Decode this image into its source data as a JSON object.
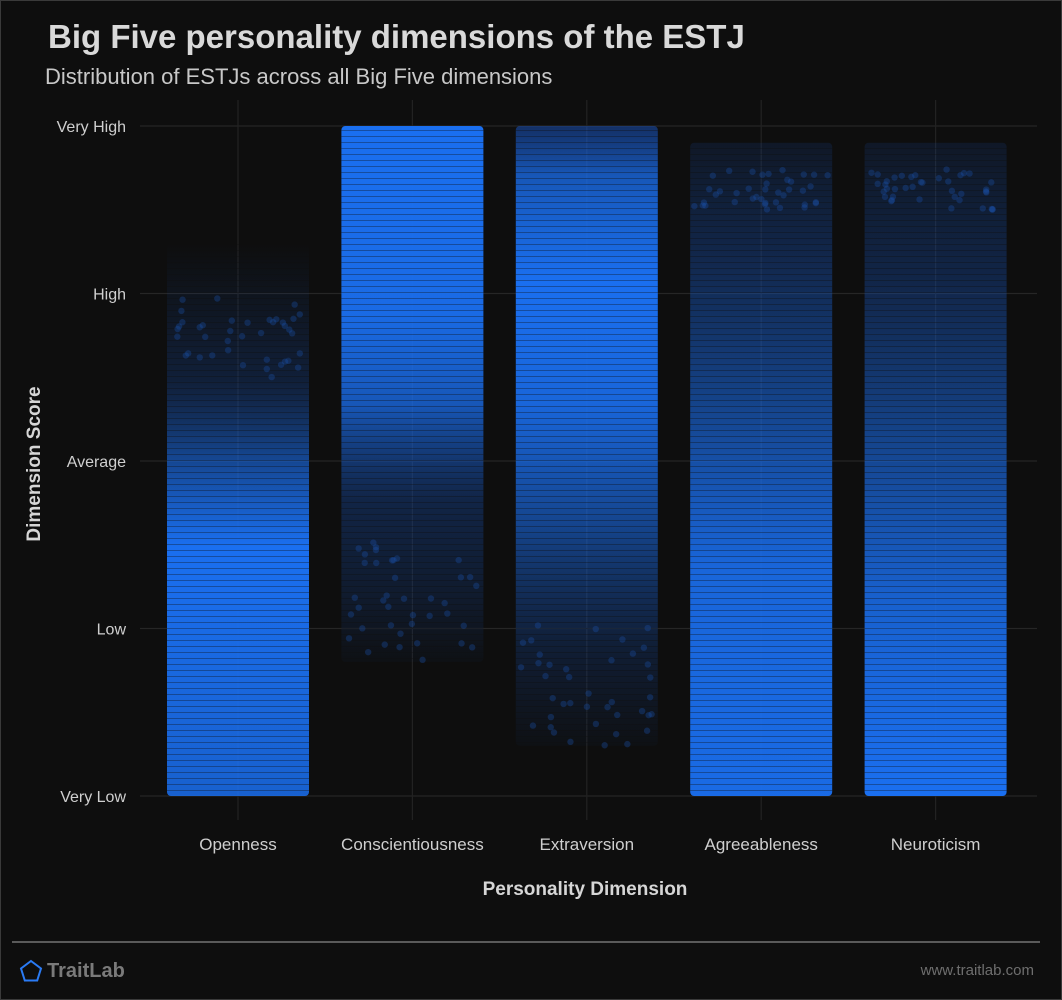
{
  "header": {
    "title": "Big Five personality dimensions of the ESTJ",
    "subtitle": "Distribution of ESTJs across all Big Five dimensions"
  },
  "footer": {
    "brand": "TraitLab",
    "brand_icon": "pentagon-logo-icon",
    "url": "www.traitlab.com"
  },
  "colors": {
    "background": "#0e0e0e",
    "accent": "#1a6ff0",
    "grid": "#2a2a2a",
    "text": "#d0d0d0"
  },
  "chart_data": {
    "type": "scatter",
    "title": "Big Five personality dimensions of the ESTJ",
    "subtitle": "Distribution of ESTJs across all Big Five dimensions",
    "xlabel": "Personality Dimension",
    "ylabel": "Dimension Score",
    "categories": [
      "Openness",
      "Conscientiousness",
      "Extraversion",
      "Agreeableness",
      "Neuroticism"
    ],
    "y_levels": [
      "Very Low",
      "Low",
      "Average",
      "High",
      "Very High"
    ],
    "ylim": [
      0,
      4
    ],
    "grid": true,
    "legend": "none",
    "series": [
      {
        "category": "Openness",
        "min": 0.0,
        "dense_top": 2.1,
        "sparse_top": 2.9,
        "max": 3.3,
        "density_peak": 1.0
      },
      {
        "category": "Conscientiousness",
        "min": 0.8,
        "dense_top": 4.0,
        "dense_bottom": 2.0,
        "max": 4.0,
        "density_peak": 3.4
      },
      {
        "category": "Extraversion",
        "min": 0.3,
        "dense_top": 3.9,
        "dense_bottom": 1.5,
        "max": 4.0,
        "density_peak": 2.8
      },
      {
        "category": "Agreeableness",
        "min": 0.0,
        "dense_top": 2.3,
        "sparse_top": 3.9,
        "max": 3.9,
        "density_peak": 0.8
      },
      {
        "category": "Neuroticism",
        "min": 0.0,
        "dense_top": 2.0,
        "sparse_top": 3.9,
        "max": 3.9,
        "density_peak": 0.4
      }
    ]
  }
}
